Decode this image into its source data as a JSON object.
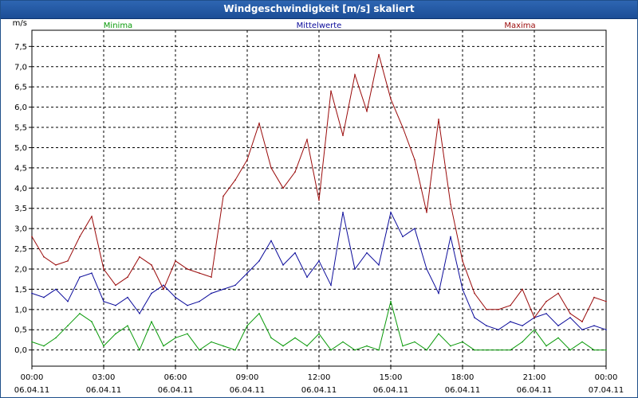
{
  "window": {
    "title": "Windgeschwindigkeit [m/s] skaliert"
  },
  "chart_data": {
    "type": "line",
    "title": "Windgeschwindigkeit [m/s] skaliert",
    "ylabel": "m/s",
    "xlabel": "",
    "ylim": [
      -0.4,
      7.9
    ],
    "y_ticks": [
      "0,0",
      "0,5",
      "1,0",
      "1,5",
      "2,0",
      "2,5",
      "3,0",
      "3,5",
      "4,0",
      "4,5",
      "5,0",
      "5,5",
      "6,0",
      "6,5",
      "7,0",
      "7,5"
    ],
    "x_ticks": [
      {
        "time": "00:00",
        "date": "06.04.11"
      },
      {
        "time": "03:00",
        "date": "06.04.11"
      },
      {
        "time": "06:00",
        "date": "06.04.11"
      },
      {
        "time": "09:00",
        "date": "06.04.11"
      },
      {
        "time": "12:00",
        "date": "06.04.11"
      },
      {
        "time": "15:00",
        "date": "06.04.11"
      },
      {
        "time": "18:00",
        "date": "06.04.11"
      },
      {
        "time": "21:00",
        "date": "06.04.11"
      },
      {
        "time": "00:00",
        "date": "07.04.11"
      }
    ],
    "x_range_hours": [
      0,
      24
    ],
    "grid": true,
    "legend_placement": "top",
    "series": [
      {
        "name": "Minima",
        "color": "#0a9a0a",
        "x_hours": [
          0,
          0.5,
          1,
          1.5,
          2,
          2.5,
          3,
          3.5,
          4,
          4.5,
          5,
          5.5,
          6,
          6.5,
          7,
          7.5,
          8,
          8.5,
          9,
          9.5,
          10,
          10.5,
          11,
          11.5,
          12,
          12.5,
          13,
          13.5,
          14,
          14.5,
          15,
          15.5,
          16,
          16.5,
          17,
          17.5,
          18,
          18.5,
          19,
          19.5,
          20,
          20.5,
          21,
          21.5,
          22,
          22.5,
          23,
          23.5,
          24
        ],
        "values": [
          0.2,
          0.1,
          0.3,
          0.6,
          0.9,
          0.7,
          0.1,
          0.4,
          0.6,
          0.0,
          0.7,
          0.1,
          0.3,
          0.4,
          0.0,
          0.2,
          0.1,
          0.0,
          0.6,
          0.9,
          0.3,
          0.1,
          0.3,
          0.1,
          0.4,
          0.0,
          0.2,
          0.0,
          0.1,
          0.0,
          1.2,
          0.1,
          0.2,
          0.0,
          0.4,
          0.1,
          0.2,
          0.0,
          0.0,
          0.0,
          0.0,
          0.2,
          0.5,
          0.1,
          0.3,
          0.0,
          0.2,
          0.0,
          0.0
        ]
      },
      {
        "name": "Mittelwerte",
        "color": "#0a0a9a",
        "x_hours": [
          0,
          0.5,
          1,
          1.5,
          2,
          2.5,
          3,
          3.5,
          4,
          4.5,
          5,
          5.5,
          6,
          6.5,
          7,
          7.5,
          8,
          8.5,
          9,
          9.5,
          10,
          10.5,
          11,
          11.5,
          12,
          12.5,
          13,
          13.5,
          14,
          14.5,
          15,
          15.5,
          16,
          16.5,
          17,
          17.5,
          18,
          18.5,
          19,
          19.5,
          20,
          20.5,
          21,
          21.5,
          22,
          22.5,
          23,
          23.5,
          24
        ],
        "values": [
          1.4,
          1.3,
          1.5,
          1.2,
          1.8,
          1.9,
          1.2,
          1.1,
          1.3,
          0.9,
          1.4,
          1.6,
          1.3,
          1.1,
          1.2,
          1.4,
          1.5,
          1.6,
          1.9,
          2.2,
          2.7,
          2.1,
          2.4,
          1.8,
          2.2,
          1.6,
          3.4,
          2.0,
          2.4,
          2.1,
          3.4,
          2.8,
          3.0,
          2.0,
          1.4,
          2.8,
          1.5,
          0.8,
          0.6,
          0.5,
          0.7,
          0.6,
          0.8,
          0.9,
          0.6,
          0.8,
          0.5,
          0.6,
          0.5
        ]
      },
      {
        "name": "Maxima",
        "color": "#9a0a0a",
        "x_hours": [
          0,
          0.5,
          1,
          1.5,
          2,
          2.5,
          3,
          3.5,
          4,
          4.5,
          5,
          5.5,
          6,
          6.5,
          7,
          7.5,
          8,
          8.5,
          9,
          9.5,
          10,
          10.5,
          11,
          11.5,
          12,
          12.5,
          13,
          13.5,
          14,
          14.5,
          15,
          15.5,
          16,
          16.5,
          17,
          17.5,
          18,
          18.5,
          19,
          19.5,
          20,
          20.5,
          21,
          21.5,
          22,
          22.5,
          23,
          23.5,
          24
        ],
        "values": [
          2.8,
          2.3,
          2.1,
          2.2,
          2.8,
          3.3,
          2.0,
          1.6,
          1.8,
          2.3,
          2.1,
          1.5,
          2.2,
          2.0,
          1.9,
          1.8,
          3.8,
          4.2,
          4.7,
          5.6,
          4.5,
          4.0,
          4.4,
          5.2,
          3.7,
          6.4,
          5.3,
          6.8,
          5.9,
          7.3,
          6.2,
          5.5,
          4.7,
          3.4,
          5.7,
          3.6,
          2.2,
          1.4,
          1.0,
          1.0,
          1.1,
          1.5,
          0.8,
          1.2,
          1.4,
          0.9,
          0.7,
          1.3,
          1.2
        ]
      }
    ]
  }
}
